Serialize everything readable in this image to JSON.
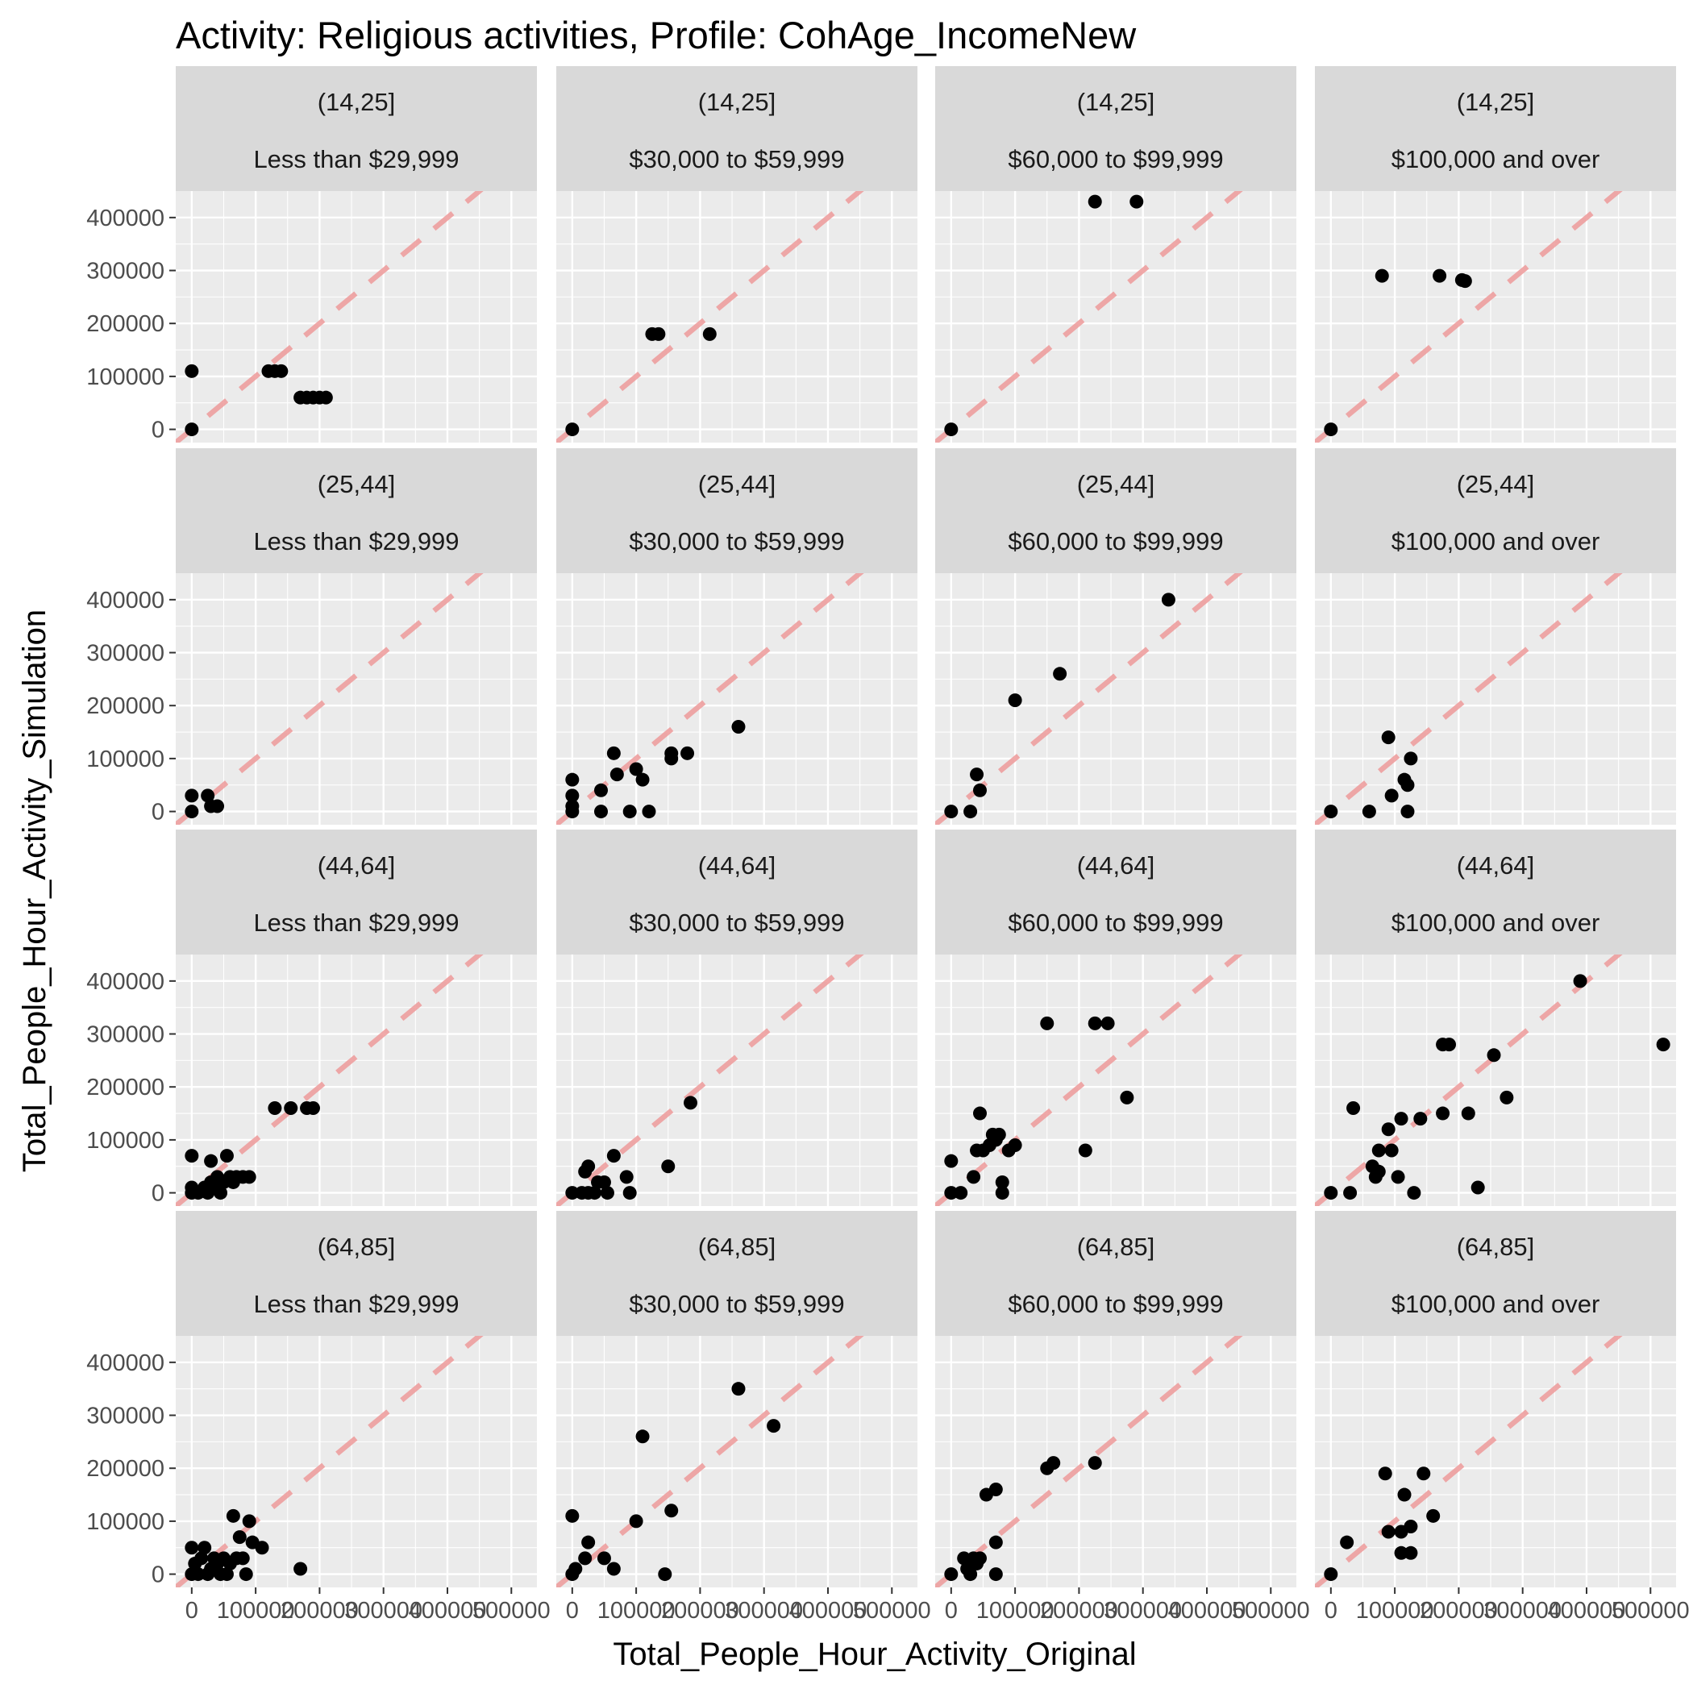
{
  "chart_data": {
    "type": "scatter",
    "title": "Activity: Religious activities, Profile: CohAge_IncomeNew",
    "xlabel": "Total_People_Hour_Activity_Original",
    "ylabel": "Total_People_Hour_Activity_Simulation",
    "xlim": [
      -25000,
      540000
    ],
    "ylim": [
      -25000,
      450000
    ],
    "x_ticks": [
      0,
      100000,
      200000,
      300000,
      400000,
      500000
    ],
    "x_tick_labels": [
      "0",
      "100000",
      "200000",
      "300000",
      "400000",
      "500000"
    ],
    "y_ticks": [
      0,
      100000,
      200000,
      300000,
      400000
    ],
    "y_tick_labels": [
      "0",
      "100000",
      "200000",
      "300000",
      "400000"
    ],
    "reference_line": "y = x (dashed)",
    "grid": true,
    "age_groups": [
      "(14,25]",
      "(25,44]",
      "(44,64]",
      "(64,85]"
    ],
    "income_groups": [
      "Less than $29,999",
      "$30,000 to $59,999",
      "$60,000 to $99,999",
      "$100,000 and over"
    ],
    "panels": [
      {
        "age": "(14,25]",
        "income": "Less than $29,999",
        "points": [
          [
            0,
            0
          ],
          [
            0,
            110000
          ],
          [
            120000,
            110000
          ],
          [
            130000,
            110000
          ],
          [
            140000,
            110000
          ],
          [
            170000,
            60000
          ],
          [
            180000,
            60000
          ],
          [
            190000,
            60000
          ],
          [
            200000,
            60000
          ],
          [
            210000,
            60000
          ]
        ]
      },
      {
        "age": "(14,25]",
        "income": "$30,000 to $59,999",
        "points": [
          [
            0,
            0
          ],
          [
            125000,
            180000
          ],
          [
            135000,
            180000
          ],
          [
            215000,
            180000
          ]
        ]
      },
      {
        "age": "(14,25]",
        "income": "$60,000 to $99,999",
        "points": [
          [
            0,
            0
          ],
          [
            225000,
            430000
          ],
          [
            290000,
            430000
          ]
        ]
      },
      {
        "age": "(14,25]",
        "income": "$100,000 and over",
        "points": [
          [
            0,
            0
          ],
          [
            80000,
            290000
          ],
          [
            170000,
            290000
          ],
          [
            205000,
            282000
          ],
          [
            210000,
            280000
          ]
        ]
      },
      {
        "age": "(25,44]",
        "income": "Less than $29,999",
        "points": [
          [
            0,
            0
          ],
          [
            0,
            30000
          ],
          [
            25000,
            30000
          ],
          [
            30000,
            10000
          ],
          [
            40000,
            10000
          ]
        ]
      },
      {
        "age": "(25,44]",
        "income": "$30,000 to $59,999",
        "points": [
          [
            0,
            0
          ],
          [
            0,
            10000
          ],
          [
            0,
            30000
          ],
          [
            0,
            60000
          ],
          [
            45000,
            40000
          ],
          [
            45000,
            0
          ],
          [
            65000,
            110000
          ],
          [
            70000,
            70000
          ],
          [
            90000,
            0
          ],
          [
            100000,
            80000
          ],
          [
            110000,
            60000
          ],
          [
            120000,
            0
          ],
          [
            155000,
            100000
          ],
          [
            155000,
            110000
          ],
          [
            180000,
            110000
          ],
          [
            260000,
            160000
          ]
        ]
      },
      {
        "age": "(25,44]",
        "income": "$60,000 to $99,999",
        "points": [
          [
            0,
            0
          ],
          [
            30000,
            0
          ],
          [
            40000,
            70000
          ],
          [
            45000,
            40000
          ],
          [
            100000,
            210000
          ],
          [
            170000,
            260000
          ],
          [
            340000,
            400000
          ]
        ]
      },
      {
        "age": "(25,44]",
        "income": "$100,000 and over",
        "points": [
          [
            0,
            0
          ],
          [
            60000,
            0
          ],
          [
            90000,
            140000
          ],
          [
            95000,
            30000
          ],
          [
            115000,
            60000
          ],
          [
            120000,
            0
          ],
          [
            120000,
            50000
          ],
          [
            125000,
            100000
          ]
        ]
      },
      {
        "age": "(44,64]",
        "income": "Less than $29,999",
        "points": [
          [
            0,
            0
          ],
          [
            0,
            10000
          ],
          [
            0,
            70000
          ],
          [
            10000,
            0
          ],
          [
            20000,
            10000
          ],
          [
            25000,
            0
          ],
          [
            30000,
            20000
          ],
          [
            30000,
            60000
          ],
          [
            35000,
            10000
          ],
          [
            40000,
            30000
          ],
          [
            45000,
            0
          ],
          [
            50000,
            20000
          ],
          [
            55000,
            70000
          ],
          [
            60000,
            30000
          ],
          [
            65000,
            20000
          ],
          [
            70000,
            30000
          ],
          [
            80000,
            30000
          ],
          [
            90000,
            30000
          ],
          [
            130000,
            160000
          ],
          [
            155000,
            160000
          ],
          [
            180000,
            160000
          ],
          [
            190000,
            160000
          ]
        ]
      },
      {
        "age": "(44,64]",
        "income": "$30,000 to $59,999",
        "points": [
          [
            0,
            0
          ],
          [
            15000,
            0
          ],
          [
            20000,
            40000
          ],
          [
            25000,
            0
          ],
          [
            25000,
            50000
          ],
          [
            35000,
            0
          ],
          [
            40000,
            20000
          ],
          [
            50000,
            20000
          ],
          [
            55000,
            0
          ],
          [
            65000,
            70000
          ],
          [
            85000,
            30000
          ],
          [
            90000,
            0
          ],
          [
            150000,
            50000
          ],
          [
            185000,
            170000
          ]
        ]
      },
      {
        "age": "(44,64]",
        "income": "$60,000 to $99,999",
        "points": [
          [
            0,
            0
          ],
          [
            0,
            60000
          ],
          [
            15000,
            0
          ],
          [
            35000,
            30000
          ],
          [
            40000,
            80000
          ],
          [
            45000,
            150000
          ],
          [
            50000,
            80000
          ],
          [
            60000,
            90000
          ],
          [
            65000,
            110000
          ],
          [
            70000,
            100000
          ],
          [
            75000,
            110000
          ],
          [
            80000,
            20000
          ],
          [
            80000,
            0
          ],
          [
            90000,
            80000
          ],
          [
            100000,
            90000
          ],
          [
            150000,
            320000
          ],
          [
            210000,
            80000
          ],
          [
            225000,
            320000
          ],
          [
            245000,
            320000
          ],
          [
            275000,
            180000
          ]
        ]
      },
      {
        "age": "(44,64]",
        "income": "$100,000 and over",
        "points": [
          [
            0,
            0
          ],
          [
            30000,
            0
          ],
          [
            35000,
            160000
          ],
          [
            65000,
            50000
          ],
          [
            70000,
            30000
          ],
          [
            75000,
            40000
          ],
          [
            75000,
            80000
          ],
          [
            90000,
            120000
          ],
          [
            95000,
            80000
          ],
          [
            105000,
            30000
          ],
          [
            110000,
            140000
          ],
          [
            130000,
            0
          ],
          [
            140000,
            140000
          ],
          [
            175000,
            150000
          ],
          [
            175000,
            280000
          ],
          [
            185000,
            280000
          ],
          [
            215000,
            150000
          ],
          [
            230000,
            10000
          ],
          [
            255000,
            260000
          ],
          [
            275000,
            180000
          ],
          [
            390000,
            400000
          ],
          [
            520000,
            280000
          ]
        ]
      },
      {
        "age": "(64,85]",
        "income": "Less than $29,999",
        "points": [
          [
            0,
            0
          ],
          [
            0,
            50000
          ],
          [
            5000,
            20000
          ],
          [
            10000,
            0
          ],
          [
            15000,
            30000
          ],
          [
            20000,
            50000
          ],
          [
            25000,
            0
          ],
          [
            30000,
            10000
          ],
          [
            35000,
            30000
          ],
          [
            40000,
            20000
          ],
          [
            45000,
            0
          ],
          [
            50000,
            30000
          ],
          [
            55000,
            0
          ],
          [
            60000,
            20000
          ],
          [
            65000,
            110000
          ],
          [
            70000,
            30000
          ],
          [
            75000,
            70000
          ],
          [
            80000,
            30000
          ],
          [
            85000,
            0
          ],
          [
            90000,
            100000
          ],
          [
            95000,
            60000
          ],
          [
            110000,
            50000
          ],
          [
            170000,
            10000
          ]
        ]
      },
      {
        "age": "(64,85]",
        "income": "$30,000 to $59,999",
        "points": [
          [
            0,
            0
          ],
          [
            0,
            110000
          ],
          [
            5000,
            10000
          ],
          [
            20000,
            30000
          ],
          [
            25000,
            60000
          ],
          [
            50000,
            30000
          ],
          [
            65000,
            10000
          ],
          [
            100000,
            100000
          ],
          [
            110000,
            260000
          ],
          [
            145000,
            0
          ],
          [
            155000,
            120000
          ],
          [
            260000,
            350000
          ],
          [
            315000,
            280000
          ]
        ]
      },
      {
        "age": "(64,85]",
        "income": "$60,000 to $99,999",
        "points": [
          [
            0,
            0
          ],
          [
            20000,
            30000
          ],
          [
            25000,
            10000
          ],
          [
            30000,
            0
          ],
          [
            35000,
            30000
          ],
          [
            40000,
            20000
          ],
          [
            45000,
            30000
          ],
          [
            55000,
            150000
          ],
          [
            70000,
            60000
          ],
          [
            70000,
            160000
          ],
          [
            70000,
            0
          ],
          [
            150000,
            200000
          ],
          [
            160000,
            210000
          ],
          [
            225000,
            210000
          ]
        ]
      },
      {
        "age": "(64,85]",
        "income": "$100,000 and over",
        "points": [
          [
            0,
            0
          ],
          [
            25000,
            60000
          ],
          [
            85000,
            190000
          ],
          [
            90000,
            80000
          ],
          [
            110000,
            40000
          ],
          [
            110000,
            80000
          ],
          [
            115000,
            150000
          ],
          [
            125000,
            40000
          ],
          [
            125000,
            90000
          ],
          [
            145000,
            190000
          ],
          [
            160000,
            110000
          ]
        ]
      }
    ]
  }
}
